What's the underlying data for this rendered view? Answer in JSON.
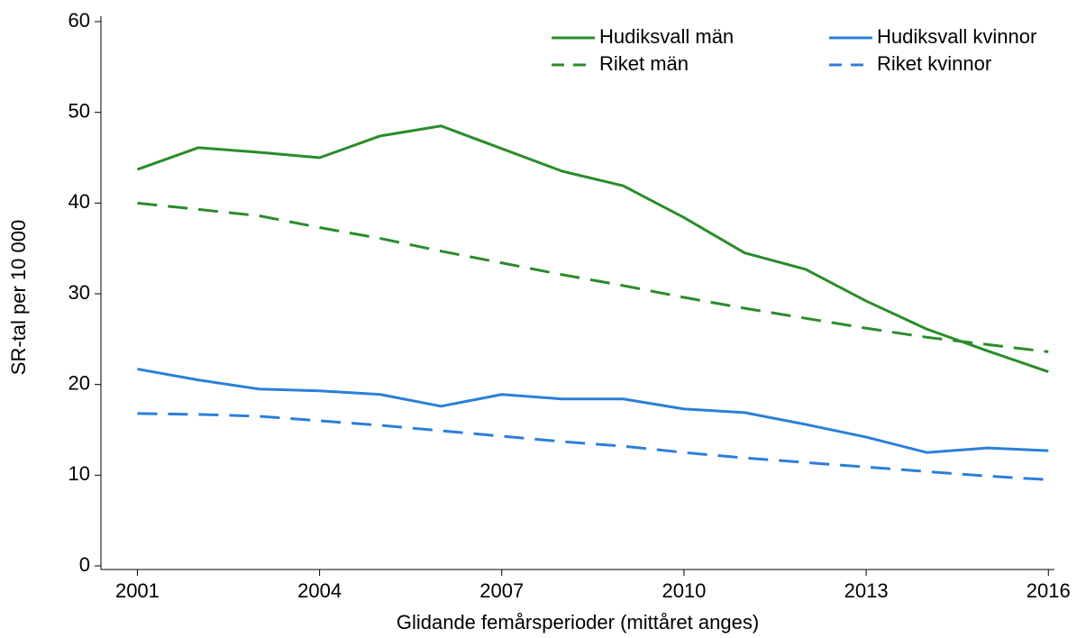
{
  "chart_data": {
    "type": "line",
    "x_label": "Glidande femårsperioder (mittåret anges)",
    "y_label": "SR-tal per 10 000",
    "x": [
      2001,
      2002,
      2003,
      2004,
      2005,
      2006,
      2007,
      2008,
      2009,
      2010,
      2011,
      2012,
      2013,
      2014,
      2015,
      2016
    ],
    "series": [
      {
        "name": "Hudiksvall män",
        "color": "#2a8c2a",
        "line_style": "solid",
        "values": [
          43.7,
          46.1,
          45.6,
          45.0,
          47.4,
          48.5,
          46.0,
          43.5,
          41.9,
          38.4,
          34.5,
          32.7,
          29.2,
          26.1,
          23.7,
          21.4
        ]
      },
      {
        "name": "Hudiksvall kvinnor",
        "color": "#2b7fd9",
        "line_style": "solid",
        "values": [
          21.7,
          20.5,
          19.5,
          19.3,
          18.9,
          17.6,
          18.9,
          18.4,
          18.4,
          17.3,
          16.9,
          15.6,
          14.2,
          12.5,
          13.0,
          12.7
        ]
      },
      {
        "name": "Riket män",
        "color": "#2a8c2a",
        "line_style": "dashed",
        "values": [
          40.0,
          39.3,
          38.6,
          37.3,
          36.1,
          34.7,
          33.4,
          32.1,
          30.9,
          29.6,
          28.4,
          27.3,
          26.2,
          25.2,
          24.4,
          23.6
        ]
      },
      {
        "name": "Riket kvinnor",
        "color": "#2b7fd9",
        "line_style": "dashed",
        "values": [
          16.8,
          16.7,
          16.5,
          16.0,
          15.5,
          14.9,
          14.3,
          13.7,
          13.2,
          12.5,
          11.9,
          11.4,
          10.9,
          10.4,
          9.9,
          9.5
        ]
      }
    ],
    "xlim": [
      2000.4,
      2016.1
    ],
    "xticks": [
      2001,
      2004,
      2007,
      2010,
      2013,
      2016
    ],
    "ylim": [
      0,
      60
    ],
    "yticks": [
      0,
      10,
      20,
      30,
      40,
      50,
      60
    ],
    "grid": false,
    "legend_position": "upper right",
    "legend_columns": 2
  }
}
